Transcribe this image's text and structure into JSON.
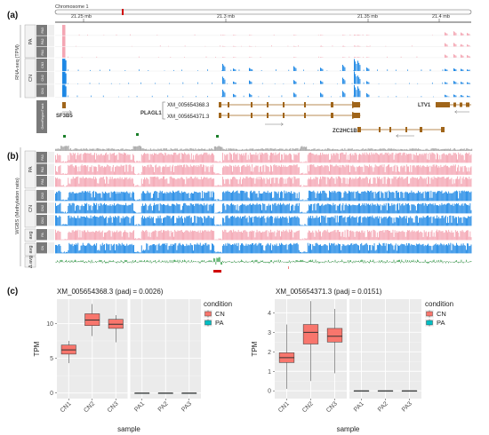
{
  "panel_labels": [
    "(a)",
    "(b)",
    "(c)"
  ],
  "browser": {
    "chromosome_label": "Chromosome 1",
    "scale_ticks": [
      "21.25 mb",
      "21.3 mb",
      "21.35 mb",
      "21.4 mb"
    ],
    "rnaseq_axis_label": "RNA-seq (TPM)",
    "wgbs_axis_label": "WGBS (Methylation ratio)",
    "group_labels": {
      "pa": "PA",
      "cn": "CN",
      "avg": "avg",
      "delta": "Δ avg"
    },
    "track_labels": [
      "PA3",
      "PA2",
      "PA1",
      "CN3",
      "CN2",
      "CN1"
    ],
    "gene_track_label": "GeneRegionTrack",
    "genes": {
      "sf3b5": "SF3B5",
      "plagl1": "PLAGL1",
      "tx1": "XM_005654368.3",
      "tx2": "XM_005654371.3",
      "zc2hc1b": "ZC2HC1B",
      "ltv1": "LTV1"
    },
    "colors": {
      "pa": "#f4a6b3",
      "cn": "#1e88e5",
      "diff": "#2e9e44",
      "dmr": "#d00000",
      "gene": "#a0651a"
    }
  },
  "chart_data": [
    {
      "type": "box",
      "title": "XM_005654368.3 (padj = 0.0026)",
      "xlabel": "sample",
      "ylabel": "TPM",
      "ylim": [
        -0.8,
        13.5
      ],
      "yticks": [
        0,
        5,
        10
      ],
      "legend_title": "condition",
      "legend": [
        "CN",
        "PA"
      ],
      "colors": {
        "CN": "#f8766d",
        "PA": "#00bfc4"
      },
      "categories": [
        "CN1",
        "CN2",
        "CN3",
        "PA1",
        "PA2",
        "PA3"
      ],
      "series": [
        {
          "category": "CN1",
          "condition": "CN",
          "min": 4.3,
          "q1": 5.6,
          "median": 6.2,
          "q3": 6.9,
          "max": 7.5
        },
        {
          "category": "CN2",
          "condition": "CN",
          "min": 8.2,
          "q1": 9.7,
          "median": 10.5,
          "q3": 11.4,
          "max": 12.8
        },
        {
          "category": "CN3",
          "condition": "CN",
          "min": 7.3,
          "q1": 9.3,
          "median": 9.9,
          "q3": 10.6,
          "max": 11.2
        },
        {
          "category": "PA1",
          "condition": "PA",
          "min": 0,
          "q1": 0,
          "median": 0,
          "q3": 0,
          "max": 0
        },
        {
          "category": "PA2",
          "condition": "PA",
          "min": 0,
          "q1": 0,
          "median": 0,
          "q3": 0,
          "max": 0
        },
        {
          "category": "PA3",
          "condition": "PA",
          "min": 0,
          "q1": 0,
          "median": 0,
          "q3": 0,
          "max": 0
        }
      ]
    },
    {
      "type": "box",
      "title": "XM_005654371.3 (padj = 0.0151)",
      "xlabel": "sample",
      "ylabel": "TPM",
      "ylim": [
        -0.4,
        4.7
      ],
      "yticks": [
        0,
        1,
        2,
        3,
        4
      ],
      "legend_title": "condition",
      "legend": [
        "CN",
        "PA"
      ],
      "colors": {
        "CN": "#f8766d",
        "PA": "#00bfc4"
      },
      "categories": [
        "CN1",
        "CN2",
        "CN3",
        "PA1",
        "PA2",
        "PA3"
      ],
      "series": [
        {
          "category": "CN1",
          "condition": "CN",
          "min": 0.1,
          "q1": 1.45,
          "median": 1.7,
          "q3": 1.95,
          "max": 3.4
        },
        {
          "category": "CN2",
          "condition": "CN",
          "min": 0.5,
          "q1": 2.4,
          "median": 3.0,
          "q3": 3.4,
          "max": 4.6
        },
        {
          "category": "CN3",
          "condition": "CN",
          "min": 0.9,
          "q1": 2.5,
          "median": 2.8,
          "q3": 3.2,
          "max": 4.2
        },
        {
          "category": "PA1",
          "condition": "PA",
          "min": 0,
          "q1": 0,
          "median": 0,
          "q3": 0,
          "max": 0
        },
        {
          "category": "PA2",
          "condition": "PA",
          "min": 0,
          "q1": 0,
          "median": 0,
          "q3": 0,
          "max": 0
        },
        {
          "category": "PA3",
          "condition": "PA",
          "min": 0,
          "q1": 0,
          "median": 0,
          "q3": 0,
          "max": 0
        }
      ]
    }
  ]
}
